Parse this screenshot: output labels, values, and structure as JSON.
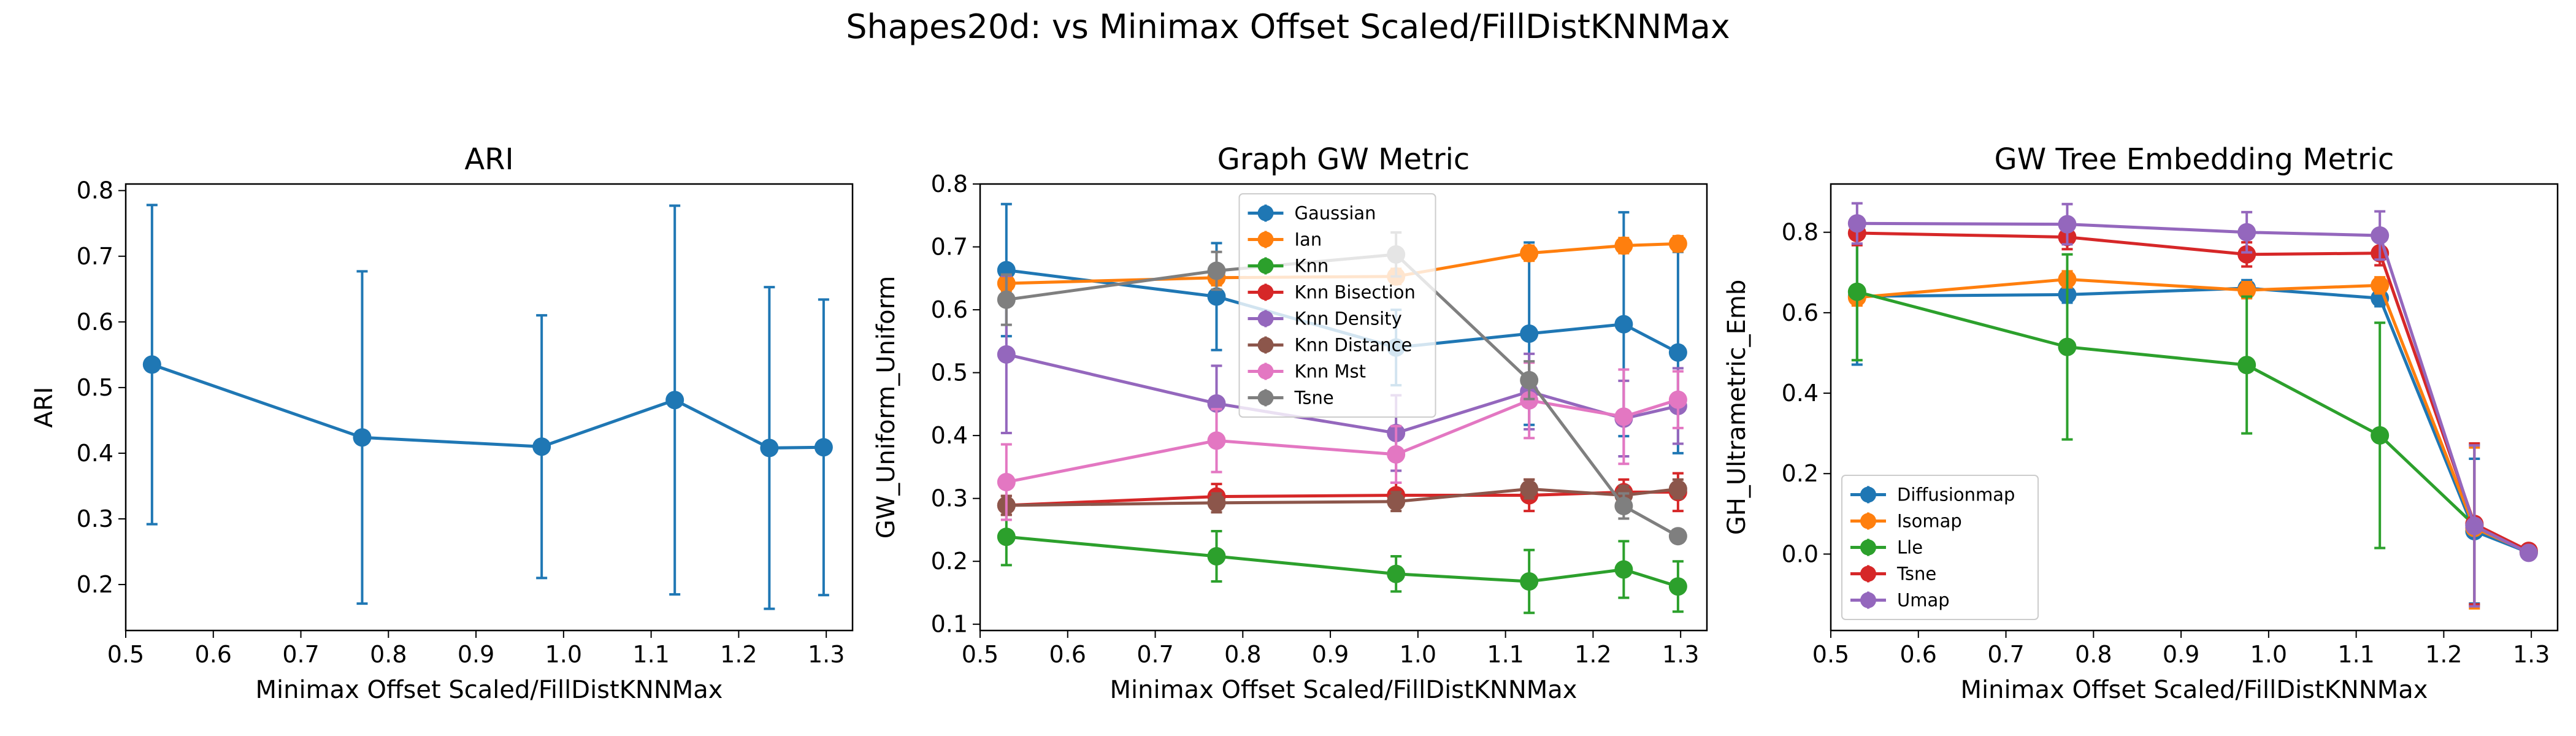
{
  "figure_title": "Shapes20d: vs Minimax Offset Scaled/FillDistKNNMax",
  "colors": {
    "tab_blue": "#1f77b4",
    "tab_orange": "#ff7f0e",
    "tab_green": "#2ca02c",
    "tab_red": "#d62728",
    "tab_purple": "#9467bd",
    "tab_brown": "#8c564b",
    "tab_pink": "#e377c2",
    "tab_gray": "#7f7f7f"
  },
  "chart_data": [
    {
      "type": "line",
      "title": "ARI",
      "xlabel": "Minimax Offset Scaled/FillDistKNNMax",
      "ylabel": "ARI",
      "xlim": [
        0.5,
        1.33
      ],
      "ylim": [
        0.13,
        0.81
      ],
      "xticks": [
        "0.5",
        "0.6",
        "0.7",
        "0.8",
        "0.9",
        "1.0",
        "1.1",
        "1.2",
        "1.3"
      ],
      "yticks": [
        "0.2",
        "0.3",
        "0.4",
        "0.5",
        "0.6",
        "0.7",
        "0.8"
      ],
      "x": [
        0.53,
        0.77,
        0.975,
        1.127,
        1.235,
        1.297
      ],
      "legend": "none",
      "series": [
        {
          "color": "#1f77b4",
          "values": [
            0.535,
            0.424,
            0.41,
            0.481,
            0.408,
            0.409
          ],
          "err": [
            0.243,
            0.253,
            0.2,
            0.296,
            0.245,
            0.225
          ]
        }
      ]
    },
    {
      "type": "line",
      "title": "Graph GW Metric",
      "xlabel": "Minimax Offset Scaled/FillDistKNNMax",
      "ylabel": "GW_Uniform_Uniform",
      "xlim": [
        0.5,
        1.33
      ],
      "ylim": [
        0.09,
        0.8
      ],
      "xticks": [
        "0.5",
        "0.6",
        "0.7",
        "0.8",
        "0.9",
        "1.0",
        "1.1",
        "1.2",
        "1.3"
      ],
      "yticks": [
        "0.1",
        "0.2",
        "0.3",
        "0.4",
        "0.5",
        "0.6",
        "0.7",
        "0.8"
      ],
      "x": [
        0.53,
        0.77,
        0.975,
        1.127,
        1.235,
        1.297
      ],
      "legend": "upper center",
      "series": [
        {
          "name": "Gaussian",
          "color": "#1f77b4",
          "values": [
            0.663,
            0.621,
            0.54,
            0.562,
            0.577,
            0.532
          ],
          "err": [
            0.105,
            0.085,
            0.06,
            0.145,
            0.178,
            0.16
          ]
        },
        {
          "name": "Ian",
          "color": "#ff7f0e",
          "values": [
            0.642,
            0.651,
            0.653,
            0.69,
            0.702,
            0.705
          ],
          "err": [
            0.012,
            0.012,
            0.012,
            0.012,
            0.012,
            0.012
          ]
        },
        {
          "name": "Knn",
          "color": "#2ca02c",
          "values": [
            0.239,
            0.208,
            0.18,
            0.168,
            0.187,
            0.16
          ],
          "err": [
            0.045,
            0.04,
            0.028,
            0.05,
            0.045,
            0.04
          ]
        },
        {
          "name": "Knn Bisection",
          "color": "#d62728",
          "values": [
            0.289,
            0.303,
            0.305,
            0.305,
            0.31,
            0.31
          ],
          "err": [
            0.015,
            0.02,
            0.02,
            0.025,
            0.02,
            0.03
          ]
        },
        {
          "name": "Knn Density",
          "color": "#9467bd",
          "values": [
            0.529,
            0.451,
            0.404,
            0.47,
            0.427,
            0.447
          ],
          "err": [
            0.125,
            0.06,
            0.06,
            0.06,
            0.06,
            0.06
          ]
        },
        {
          "name": "Knn Distance",
          "color": "#8c564b",
          "values": [
            0.289,
            0.293,
            0.295,
            0.315,
            0.305,
            0.315
          ],
          "err": [
            0.015,
            0.015,
            0.015,
            0.015,
            0.015,
            0.015
          ]
        },
        {
          "name": "Knn Mst",
          "color": "#e377c2",
          "values": [
            0.326,
            0.392,
            0.37,
            0.456,
            0.43,
            0.457
          ],
          "err": [
            0.06,
            0.05,
            0.045,
            0.06,
            0.075,
            0.045
          ]
        },
        {
          "name": "Tsne",
          "color": "#7f7f7f",
          "values": [
            0.616,
            0.662,
            0.688,
            0.488,
            0.288,
            0.24
          ],
          "err": [
            0.04,
            0.03,
            0.035,
            0.03,
            0.02,
            0.01
          ]
        }
      ]
    },
    {
      "type": "line",
      "title": "GW Tree Embedding Metric",
      "xlabel": "Minimax Offset Scaled/FillDistKNNMax",
      "ylabel": "GH_Ultrametric_Emb",
      "xlim": [
        0.5,
        1.33
      ],
      "ylim": [
        -0.19,
        0.92
      ],
      "xticks": [
        "0.5",
        "0.6",
        "0.7",
        "0.8",
        "0.9",
        "1.0",
        "1.1",
        "1.2",
        "1.3"
      ],
      "yticks": [
        "0.0",
        "0.2",
        "0.4",
        "0.6",
        "0.8"
      ],
      "x": [
        0.53,
        0.77,
        0.975,
        1.127,
        1.235,
        1.297
      ],
      "legend": "lower left",
      "series": [
        {
          "name": "Diffusionmap",
          "color": "#1f77b4",
          "values": [
            0.641,
            0.645,
            0.661,
            0.636,
            0.057,
            0.004
          ],
          "err": [
            0.17,
            0.02,
            0.02,
            0.02,
            0.18,
            0.005
          ]
        },
        {
          "name": "Isomap",
          "color": "#ff7f0e",
          "values": [
            0.638,
            0.683,
            0.656,
            0.668,
            0.065,
            0.005
          ],
          "err": [
            0.02,
            0.02,
            0.02,
            0.02,
            0.2,
            0.005
          ]
        },
        {
          "name": "Lle",
          "color": "#2ca02c",
          "values": [
            0.652,
            0.515,
            0.47,
            0.295,
            0.072,
            0.006
          ],
          "err": [
            0.17,
            0.23,
            0.17,
            0.28,
            0.2,
            0.005
          ]
        },
        {
          "name": "Tsne",
          "color": "#d62728",
          "values": [
            0.798,
            0.788,
            0.745,
            0.748,
            0.075,
            0.008
          ],
          "err": [
            0.03,
            0.03,
            0.03,
            0.03,
            0.2,
            0.005
          ]
        },
        {
          "name": "Umap",
          "color": "#9467bd",
          "values": [
            0.822,
            0.82,
            0.8,
            0.792,
            0.07,
            0.003
          ],
          "err": [
            0.05,
            0.05,
            0.05,
            0.06,
            0.2,
            0.005
          ]
        }
      ]
    }
  ]
}
